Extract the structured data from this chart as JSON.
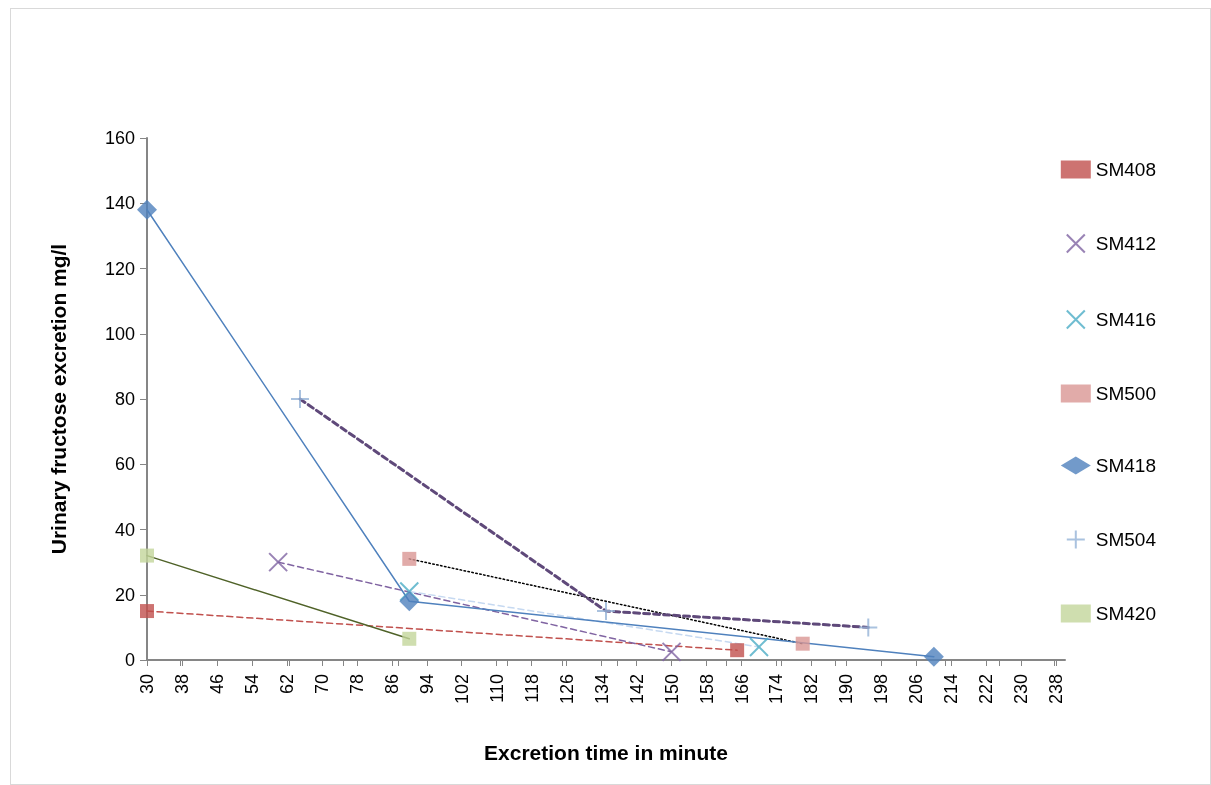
{
  "chart_data": {
    "type": "line",
    "xlabel": "Excretion time in minute",
    "ylabel": "Urinary fructose excretion mg/l",
    "xlim": [
      30,
      240
    ],
    "xticks": [
      30,
      38,
      46,
      54,
      62,
      70,
      78,
      86,
      94,
      102,
      110,
      118,
      126,
      134,
      142,
      150,
      158,
      166,
      174,
      182,
      190,
      198,
      206,
      214,
      222,
      230,
      238
    ],
    "ylim": [
      0,
      160
    ],
    "yticks": [
      0,
      20,
      40,
      60,
      80,
      100,
      120,
      140,
      160
    ],
    "grid": false,
    "legend": "right",
    "series": [
      {
        "name": "SM408",
        "type": "scatter",
        "marker": "square",
        "color": "#c0504d",
        "x": [
          30,
          165
        ],
        "values": [
          15,
          3
        ]
      },
      {
        "name": "SM412",
        "type": "scatter",
        "marker": "cross",
        "color": "#8064a2",
        "x": [
          60,
          150
        ],
        "values": [
          30,
          2.5
        ]
      },
      {
        "name": "SM416",
        "type": "scatter",
        "marker": "cross",
        "color": "#4bacc6",
        "x": [
          90,
          170
        ],
        "values": [
          21,
          4
        ]
      },
      {
        "name": "SM500",
        "type": "scatter",
        "marker": "square",
        "color": "#d99694",
        "x": [
          90,
          180
        ],
        "values": [
          31,
          5
        ]
      },
      {
        "name": "SM418",
        "type": "scatter",
        "marker": "diamond",
        "color": "#4f81bd",
        "x": [
          30,
          90,
          210
        ],
        "values": [
          138,
          18,
          1
        ]
      },
      {
        "name": "SM504",
        "type": "scatter",
        "marker": "plus",
        "color": "#95b3d7",
        "x": [
          65,
          135,
          195
        ],
        "values": [
          80,
          15,
          10
        ]
      },
      {
        "name": "SM420",
        "type": "scatter",
        "marker": "square",
        "color": "#c3d69b",
        "x": [
          30,
          90
        ],
        "values": [
          32,
          6.5
        ]
      },
      {
        "marker": "none",
        "line_style": "dashed",
        "color": "#c0504d",
        "x": [
          30,
          165
        ],
        "values": [
          15,
          3
        ]
      },
      {
        "marker": "none",
        "line_style": "dashed",
        "color": "#8064a2",
        "x": [
          60,
          150
        ],
        "values": [
          30,
          2.5
        ]
      },
      {
        "marker": "none",
        "line_style": "dashed",
        "color": "#c6d9f1",
        "x": [
          90,
          170
        ],
        "values": [
          21,
          4
        ]
      },
      {
        "marker": "none",
        "line_style": "dotted",
        "color": "#000000",
        "x": [
          90,
          180
        ],
        "values": [
          31,
          5
        ]
      },
      {
        "marker": "none",
        "line_style": "solid",
        "color": "#4f81bd",
        "x": [
          30,
          90,
          210
        ],
        "values": [
          138,
          18,
          1
        ]
      },
      {
        "marker": "none",
        "line_style": "dashed",
        "color": "#5f497a",
        "x": [
          65,
          135,
          195
        ],
        "values": [
          80,
          15,
          10
        ]
      },
      {
        "marker": "none",
        "line_style": "solid",
        "color": "#4f6228",
        "x": [
          30,
          90
        ],
        "values": [
          32,
          6.5
        ]
      }
    ]
  }
}
